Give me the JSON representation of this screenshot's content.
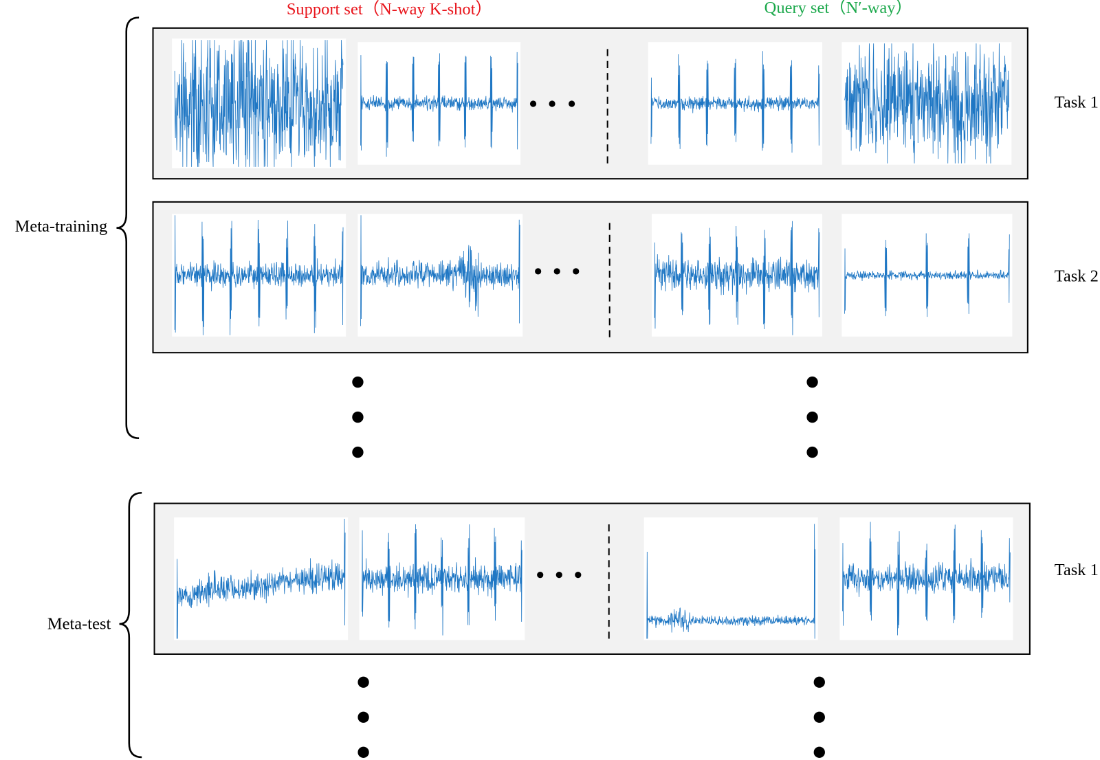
{
  "header": {
    "support_label": "Support set（N-way K-shot）",
    "query_label": "Query set（N′-way）"
  },
  "groups": [
    {
      "label": "Meta-training",
      "tasks": [
        {
          "label": "Task 1"
        },
        {
          "label": "Task 2"
        }
      ]
    },
    {
      "label": "Meta-test",
      "tasks": [
        {
          "label": "Task 1"
        }
      ]
    }
  ]
}
